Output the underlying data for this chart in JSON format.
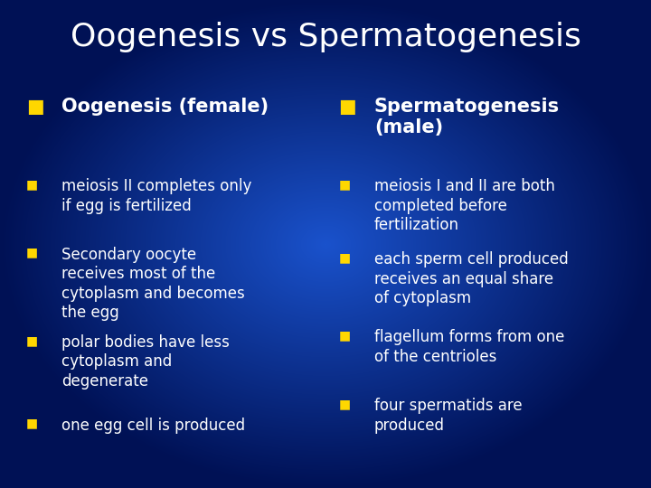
{
  "title": "Oogenesis vs Spermatogenesis",
  "bg_color_center": "#1a4fcc",
  "bg_color_edge": "#00114d",
  "title_color": "#FFFFFF",
  "bullet_color": "#FFD700",
  "text_color": "#FFFFFF",
  "header_color": "#FFFFFF",
  "left_header": "Oogenesis (female)",
  "right_header": "Spermatogenesis\n(male)",
  "left_bullets": [
    "meiosis II completes only\nif egg is fertilized",
    "Secondary oocyte\nreceives most of the\ncytoplasm and becomes\nthe egg",
    "polar bodies have less\ncytoplasm and\ndegenerate",
    "one egg cell is produced"
  ],
  "right_bullets": [
    "meiosis I and II are both\ncompleted before\nfertilization",
    "each sperm cell produced\nreceives an equal share\nof cytoplasm",
    "flagellum forms from one\nof the centrioles",
    "four spermatids are\nproduced"
  ],
  "title_fontsize": 26,
  "header_fontsize": 15,
  "bullet_fontsize": 12,
  "bullet_marker_fontsize": 10
}
